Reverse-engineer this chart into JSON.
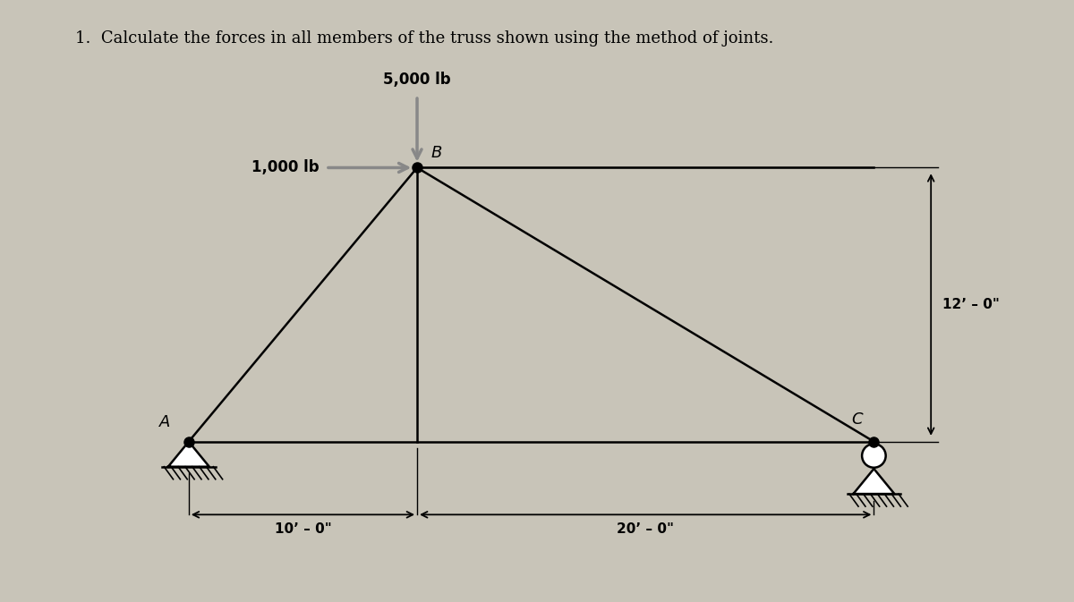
{
  "title": "1.  Calculate the forces in all members of the truss shown using the method of joints.",
  "background_color": "#c8c4b8",
  "nodes": {
    "A": [
      0,
      0
    ],
    "B": [
      10,
      12
    ],
    "C": [
      30,
      0
    ]
  },
  "B_base": [
    10,
    0
  ],
  "force_5000_label": "5,000 lb",
  "force_1000_label": "1,000 lb",
  "dim_10_label": "10’ – 0\"",
  "dim_20_label": "20’ – 0\"",
  "dim_12_label": "12’ – 0\"",
  "node_labels": {
    "A": "A",
    "B": "B",
    "C": "C"
  },
  "line_color": "#000000",
  "arrow_color": "#888888",
  "text_color": "#000000"
}
